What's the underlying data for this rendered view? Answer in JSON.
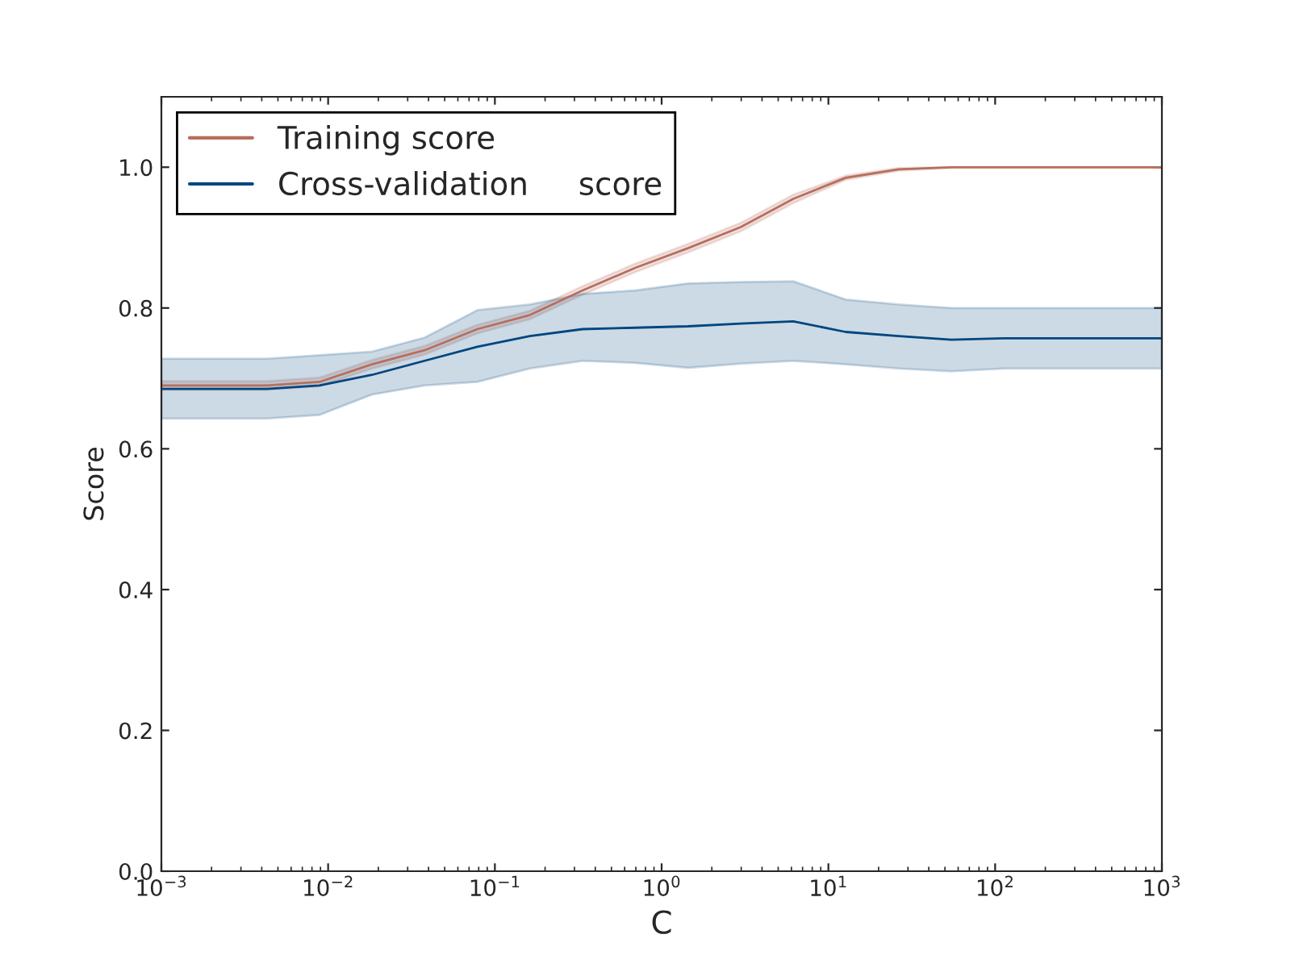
{
  "chart_data": {
    "type": "line",
    "xlabel": "C",
    "ylabel": "Score",
    "log": "x",
    "grid": false,
    "legend": "top left",
    "line_style": "solid",
    "marker": "none",
    "x": [
      0.001,
      0.00207,
      0.00428,
      0.00886,
      0.0183,
      0.0379,
      0.0785,
      0.162,
      0.336,
      0.695,
      1.44,
      2.98,
      6.16,
      12.7,
      26.4,
      54.6,
      113,
      234,
      483,
      1000
    ],
    "series": [
      {
        "name": "Training score",
        "color": "#b86e5e",
        "values": [
          0.69,
          0.69,
          0.69,
          0.695,
          0.72,
          0.74,
          0.77,
          0.79,
          0.825,
          0.857,
          0.885,
          0.915,
          0.955,
          0.985,
          0.997,
          1.0,
          1.0,
          1.0,
          1.0,
          1.0
        ],
        "lower": [
          0.684,
          0.684,
          0.684,
          0.689,
          0.714,
          0.734,
          0.764,
          0.784,
          0.819,
          0.851,
          0.879,
          0.909,
          0.949,
          0.982,
          0.995,
          0.999,
          0.999,
          0.999,
          0.999,
          0.999
        ],
        "upper": [
          0.696,
          0.696,
          0.696,
          0.701,
          0.726,
          0.746,
          0.776,
          0.796,
          0.831,
          0.863,
          0.891,
          0.921,
          0.961,
          0.988,
          0.999,
          1.0,
          1.0,
          1.0,
          1.0,
          1.0
        ]
      },
      {
        "name": "Cross-validation     score",
        "color": "#00467f",
        "values": [
          0.685,
          0.685,
          0.685,
          0.69,
          0.705,
          0.725,
          0.745,
          0.76,
          0.77,
          0.772,
          0.774,
          0.778,
          0.781,
          0.766,
          0.76,
          0.755,
          0.757,
          0.757,
          0.757,
          0.757
        ],
        "lower": [
          0.643,
          0.643,
          0.643,
          0.648,
          0.677,
          0.69,
          0.695,
          0.714,
          0.725,
          0.722,
          0.715,
          0.721,
          0.725,
          0.72,
          0.714,
          0.71,
          0.714,
          0.714,
          0.714,
          0.714
        ],
        "upper": [
          0.728,
          0.728,
          0.728,
          0.733,
          0.738,
          0.758,
          0.797,
          0.805,
          0.82,
          0.825,
          0.835,
          0.837,
          0.838,
          0.812,
          0.805,
          0.8,
          0.8,
          0.8,
          0.8,
          0.8
        ]
      }
    ],
    "xlim": [
      0.001,
      1000
    ],
    "xticks": [
      {
        "value": 0.001,
        "label": "10$^{−3}$"
      },
      {
        "value": 0.01,
        "label": "10$^{−2}$"
      },
      {
        "value": 0.1,
        "label": "10$^{−1}$"
      },
      {
        "value": 1,
        "label": "10$^{0}$"
      },
      {
        "value": 10,
        "label": "10$^{1}$"
      },
      {
        "value": 100,
        "label": "10$^{2}$"
      },
      {
        "value": 1000,
        "label": "10$^{3}$"
      }
    ],
    "ylim": [
      0,
      1.1
    ],
    "yticks": [
      {
        "value": 0,
        "label": "0.0"
      },
      {
        "value": 0.2,
        "label": "0.2"
      },
      {
        "value": 0.4,
        "label": "0.4"
      },
      {
        "value": 0.6,
        "label": "0.6"
      },
      {
        "value": 0.8,
        "label": "0.8"
      },
      {
        "value": 1.0,
        "label": "1.0"
      }
    ]
  }
}
